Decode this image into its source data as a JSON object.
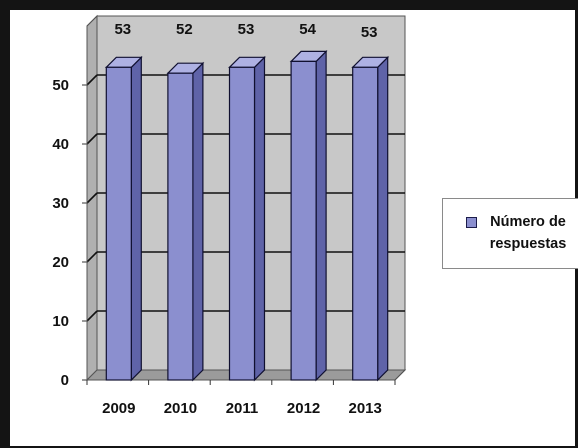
{
  "chart_data": {
    "type": "bar",
    "categories": [
      "2009",
      "2010",
      "2011",
      "2012",
      "2013"
    ],
    "series": [
      {
        "name": "Número de respuestas",
        "values": [
          53,
          52,
          53,
          54,
          53
        ]
      }
    ],
    "data_labels": [
      "53",
      "52",
      "53",
      "54",
      "53"
    ],
    "y_ticks": [
      "0",
      "10",
      "20",
      "30",
      "40",
      "50"
    ],
    "ylim": [
      0,
      60
    ],
    "grid": true,
    "three_d": true,
    "legend_position": "right",
    "colors": {
      "bar_front": "#8b8fcf",
      "bar_side": "#5f63a8",
      "bar_top": "#aeb1e3",
      "bar_edge": "#101030",
      "wall": "#c8c8c8",
      "floor": "#9b9b9b",
      "gridline": "#111111"
    }
  }
}
